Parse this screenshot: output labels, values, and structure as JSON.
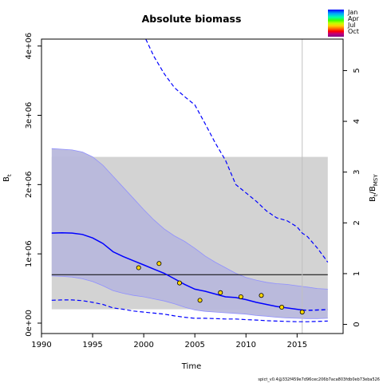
{
  "page": {
    "title": "Absolute biomass",
    "footer": "spict_v0.4@332f459e7d96cec206b7aca803fdb0eb73eba526"
  },
  "legend": {
    "items": [
      "Jan",
      "Apr",
      "Jul",
      "Oct"
    ]
  },
  "chart_data": {
    "type": "line",
    "title": "Absolute biomass",
    "xlabel": "Time",
    "ylabel_left": "B_t",
    "ylabel_right": "B_t/B_MSY",
    "xlim": [
      1990,
      2019.5
    ],
    "ylim": [
      -150000,
      4100000
    ],
    "ylim_right": [
      -0.18,
      5.62
    ],
    "x_ticks": [
      1990,
      1995,
      2000,
      2005,
      2010,
      2015
    ],
    "y_ticks": [
      0,
      1000000,
      2000000,
      3000000,
      4000000
    ],
    "y_tick_labels": [
      "0e+00",
      "1e+06",
      "2e+06",
      "3e+06",
      "4e+06"
    ],
    "y_right_ticks": [
      0,
      1,
      2,
      3,
      4,
      5
    ],
    "bmsy_reference": {
      "value": 700000,
      "ci_band": [
        200000,
        2400000
      ],
      "x_range": [
        1991,
        2018
      ],
      "color": "#d3d3d3"
    },
    "vertical_line_x": 2015.5,
    "series": [
      {
        "role": "estimate",
        "color": "#0000ff",
        "style": "solid",
        "x": [
          1991,
          1992,
          1993,
          1994,
          1995,
          1996,
          1997,
          1998,
          1999,
          2000,
          2001,
          2002,
          2003,
          2004,
          2005,
          2006,
          2007,
          2008,
          2009,
          2010,
          2011,
          2012,
          2013,
          2014,
          2015,
          2015.5
        ],
        "y": [
          1300000,
          1305000,
          1300000,
          1280000,
          1230000,
          1150000,
          1030000,
          960000,
          900000,
          840000,
          780000,
          720000,
          640000,
          560000,
          490000,
          460000,
          420000,
          380000,
          370000,
          340000,
          300000,
          270000,
          240000,
          220000,
          200000,
          190000
        ]
      },
      {
        "role": "estimate-forecast",
        "color": "#0000ff",
        "style": "dashed",
        "x": [
          2015.5,
          2016,
          2017,
          2018
        ],
        "y": [
          190000,
          185000,
          190000,
          195000
        ]
      },
      {
        "role": "ci-band",
        "color": "#b8b8dc",
        "x": [
          1991,
          1992,
          1993,
          1994,
          1995,
          1996,
          1997,
          1998,
          1999,
          2000,
          2001,
          2002,
          2003,
          2004,
          2005,
          2006,
          2007,
          2008,
          2009,
          2010,
          2011,
          2012,
          2013,
          2014,
          2015,
          2016,
          2017,
          2018
        ],
        "upper": [
          2520000,
          2510000,
          2500000,
          2470000,
          2400000,
          2280000,
          2120000,
          1960000,
          1800000,
          1640000,
          1490000,
          1360000,
          1260000,
          1180000,
          1080000,
          970000,
          880000,
          800000,
          720000,
          660000,
          620000,
          590000,
          570000,
          560000,
          540000,
          520000,
          500000,
          490000
        ],
        "lower": [
          680000,
          675000,
          665000,
          640000,
          600000,
          540000,
          470000,
          430000,
          400000,
          380000,
          350000,
          320000,
          280000,
          230000,
          190000,
          170000,
          160000,
          150000,
          140000,
          130000,
          110000,
          100000,
          85000,
          75000,
          70000,
          65000,
          65000,
          70000
        ]
      },
      {
        "role": "ci-upper",
        "color": "#0000ff",
        "style": "dashed",
        "x": [
          2000.2,
          2001,
          2002,
          2003,
          2004,
          2005,
          2006,
          2007,
          2008,
          2009,
          2010,
          2011,
          2012,
          2013,
          2014,
          2015,
          2015.5,
          2016,
          2017,
          2018
        ],
        "y": [
          4100000,
          3850000,
          3600000,
          3400000,
          3270000,
          3150000,
          2880000,
          2600000,
          2350000,
          2000000,
          1880000,
          1760000,
          1620000,
          1520000,
          1480000,
          1390000,
          1300000,
          1250000,
          1080000,
          880000
        ]
      },
      {
        "role": "ci-lower",
        "color": "#0000ff",
        "style": "dashed",
        "x": [
          1991,
          1992,
          1993,
          1994,
          1995,
          1996,
          1997,
          1998,
          1999,
          2000,
          2001,
          2002,
          2003,
          2004,
          2005,
          2006,
          2007,
          2008,
          2009,
          2010,
          2011,
          2012,
          2013,
          2014,
          2015,
          2016,
          2017,
          2018
        ],
        "y": [
          330000,
          335000,
          335000,
          325000,
          300000,
          270000,
          220000,
          200000,
          175000,
          160000,
          145000,
          130000,
          105000,
          85000,
          70000,
          70000,
          65000,
          60000,
          60000,
          50000,
          45000,
          35000,
          30000,
          25000,
          20000,
          20000,
          25000,
          30000
        ]
      }
    ],
    "observations": {
      "color": "#ffd700",
      "x": [
        1999.5,
        2001.5,
        2003.5,
        2005.5,
        2007.5,
        2009.5,
        2011.5,
        2013.5,
        2015.5
      ],
      "y": [
        800000,
        860000,
        580000,
        330000,
        440000,
        380000,
        400000,
        230000,
        160000
      ]
    }
  }
}
